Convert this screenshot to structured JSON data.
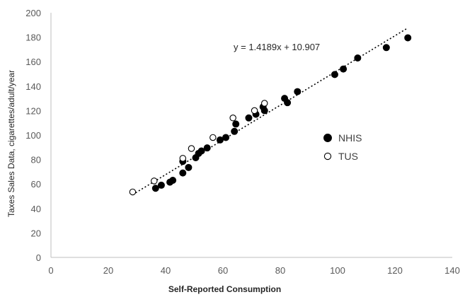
{
  "chart_data": {
    "type": "scatter",
    "title": "",
    "xlabel": "Self-Reported Consumption",
    "ylabel": "Taxes Sales Data, cigarettes/adult/year",
    "xlim": [
      0,
      140
    ],
    "ylim": [
      0,
      200
    ],
    "x_ticks": [
      "0",
      "20",
      "40",
      "60",
      "80",
      "100",
      "120",
      "140"
    ],
    "y_ticks": [
      "0",
      "20",
      "40",
      "60",
      "80",
      "100",
      "120",
      "140",
      "160",
      "180",
      "200"
    ],
    "grid": false,
    "legend_position": "right",
    "trendline": {
      "label": "y = 1.4189x + 10.907",
      "slope": 1.4189,
      "intercept": 10.907,
      "x_range": [
        28.5,
        124.5
      ],
      "style": "dotted"
    },
    "series": [
      {
        "name": "NHIS",
        "marker": "filled-circle",
        "color": "#000000",
        "points": [
          [
            36.5,
            56.5
          ],
          [
            38.5,
            59
          ],
          [
            41.5,
            61.5
          ],
          [
            42.5,
            63
          ],
          [
            46,
            69
          ],
          [
            46,
            78.5
          ],
          [
            48,
            73.5
          ],
          [
            50.5,
            81.5
          ],
          [
            51.5,
            85
          ],
          [
            52.5,
            87
          ],
          [
            54.5,
            89.5
          ],
          [
            59,
            96
          ],
          [
            61,
            98
          ],
          [
            64,
            103
          ],
          [
            64.5,
            109
          ],
          [
            69,
            114
          ],
          [
            71.5,
            117
          ],
          [
            74,
            123
          ],
          [
            74.5,
            120
          ],
          [
            81.5,
            130
          ],
          [
            82.5,
            126.5
          ],
          [
            86,
            135.5
          ],
          [
            99,
            149.5
          ],
          [
            102,
            154
          ],
          [
            107,
            163
          ],
          [
            117,
            171.5
          ],
          [
            124.5,
            179.5
          ]
        ]
      },
      {
        "name": "TUS",
        "marker": "open-circle",
        "color": "#000000",
        "points": [
          [
            28.5,
            53.5
          ],
          [
            36,
            62.5
          ],
          [
            46,
            81
          ],
          [
            49,
            89
          ],
          [
            56.5,
            98
          ],
          [
            63.5,
            114
          ],
          [
            71,
            120
          ],
          [
            74.5,
            126
          ]
        ]
      }
    ]
  }
}
